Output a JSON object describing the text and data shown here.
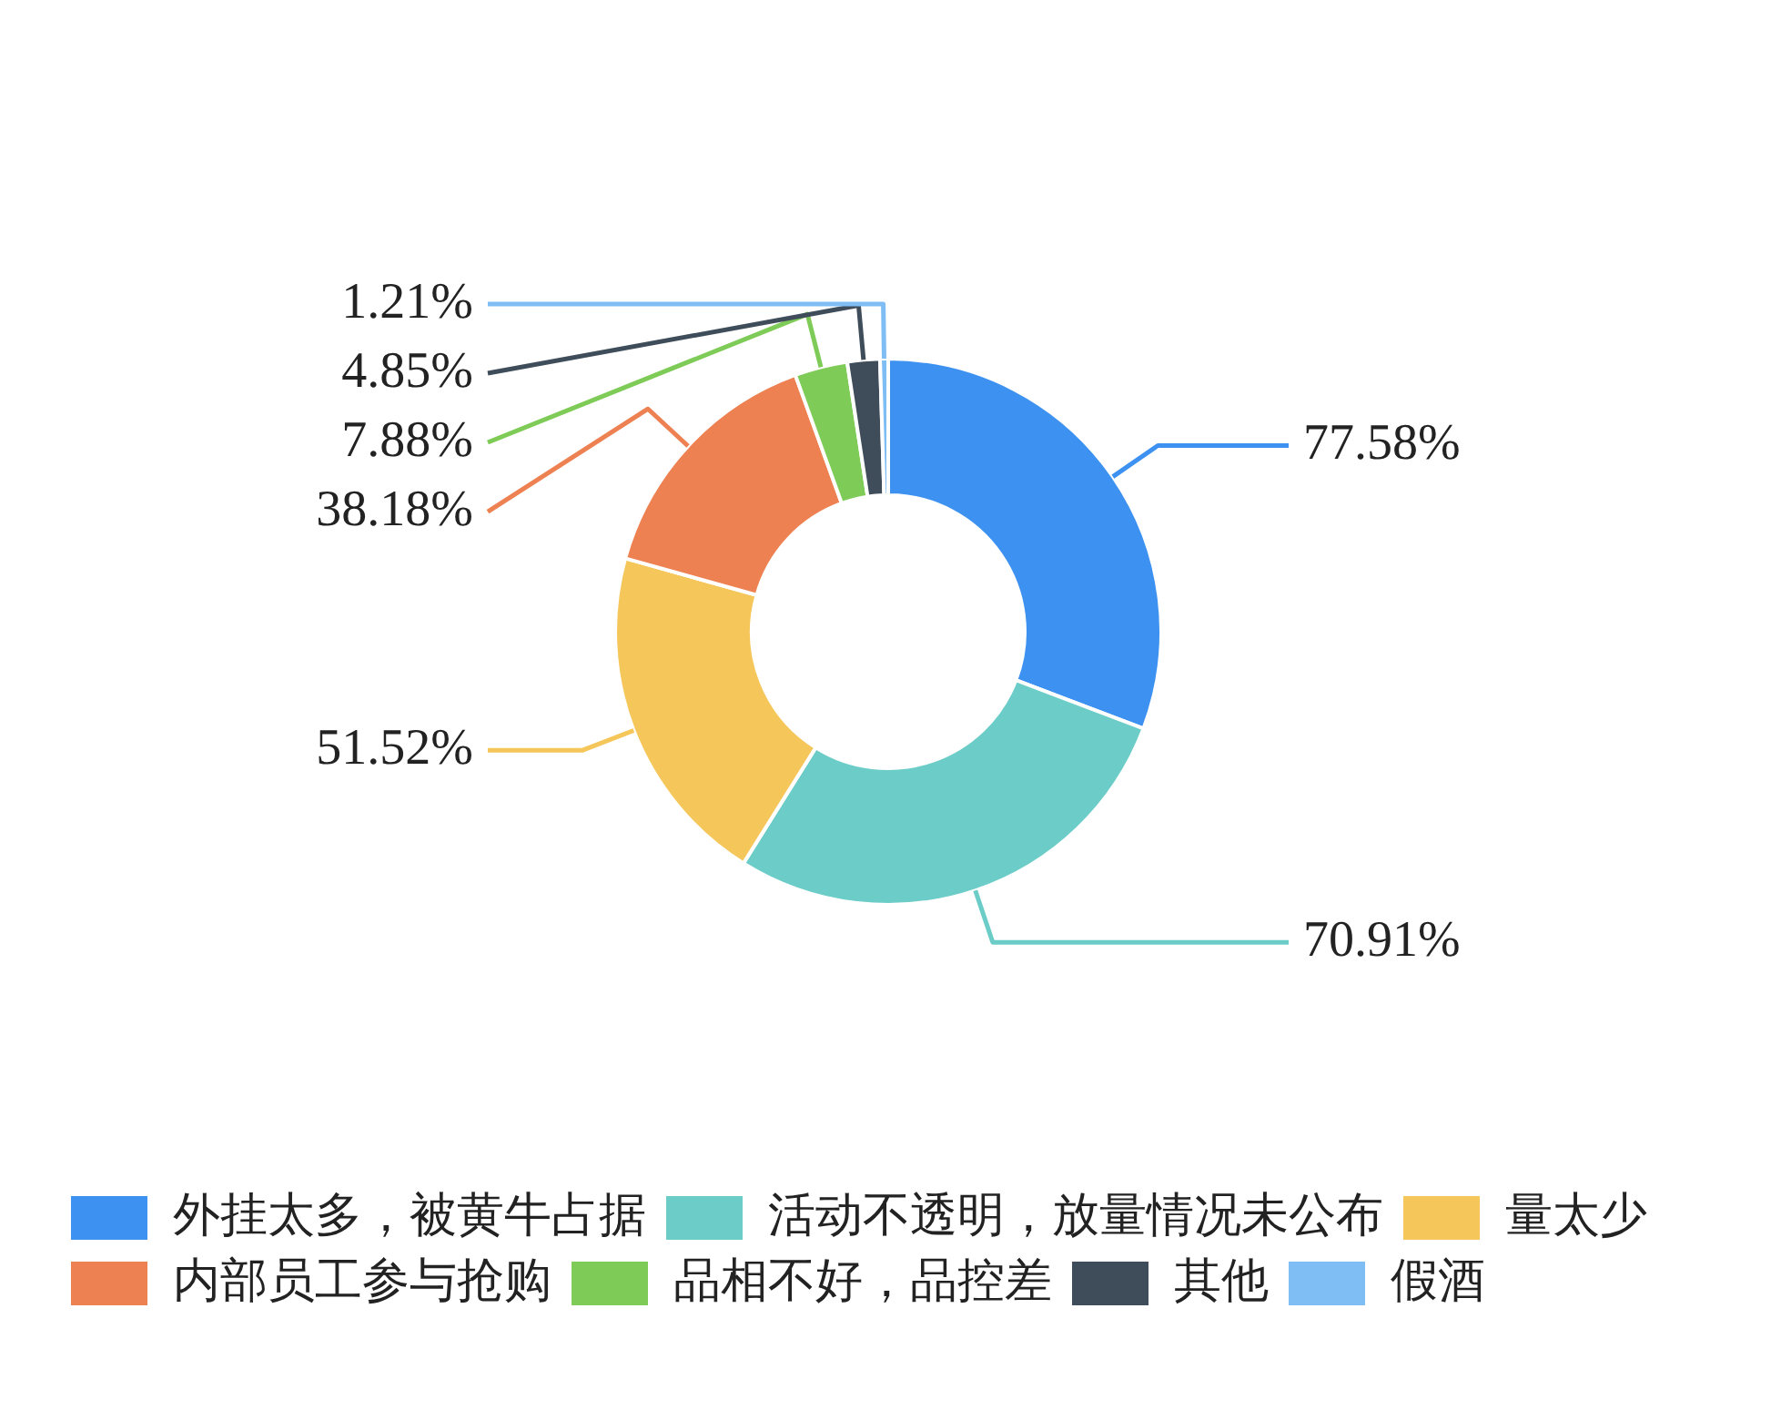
{
  "chart_data": {
    "type": "donut",
    "categories": [
      "外挂太多，被黄牛占据",
      "活动不透明，放量情况未公布",
      "量太少",
      "内部员工参与抢购",
      "品相不好，品控差",
      "其他",
      "假酒"
    ],
    "values": [
      77.58,
      70.91,
      51.52,
      38.18,
      7.88,
      4.85,
      1.21
    ],
    "value_labels": [
      "77.58%",
      "70.91%",
      "51.52%",
      "38.18%",
      "7.88%",
      "4.85%",
      "1.21%"
    ],
    "colors": [
      "#3d91f0",
      "#6ccdc8",
      "#f5c65a",
      "#ee8152",
      "#7ecb57",
      "#3f4d5a",
      "#7fbef5"
    ],
    "legend": "bottom"
  }
}
